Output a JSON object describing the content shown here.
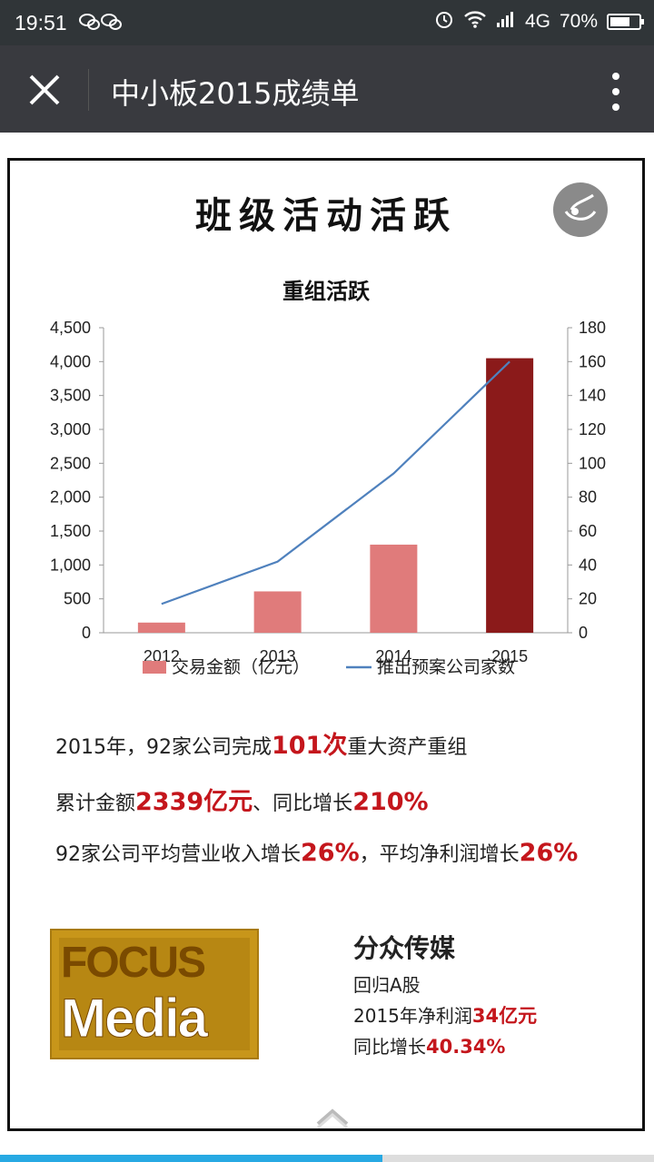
{
  "status_bar": {
    "time": "19:51",
    "network": "4G",
    "battery": "70%",
    "battery_level": 0.7
  },
  "header": {
    "title": "中小板2015成绩单",
    "close_icon": "close-icon",
    "more_icon": "more-vertical-icon"
  },
  "poster": {
    "title": "班级活动活跃",
    "chart_title": "重组活跃"
  },
  "chart_data": {
    "type": "bar",
    "title": "重组活跃",
    "categories": [
      "2012",
      "2013",
      "2014",
      "2015"
    ],
    "series": [
      {
        "name": "交易金额（亿元）",
        "type": "bar",
        "axis": "left",
        "values": [
          150,
          610,
          1300,
          4050
        ],
        "colors": [
          "#e07b7b",
          "#e07b7b",
          "#e07b7b",
          "#8b1a1a"
        ]
      },
      {
        "name": "推出预案公司家数",
        "type": "line",
        "axis": "right",
        "values": [
          17,
          42,
          94,
          160
        ],
        "color": "#4f81bd"
      }
    ],
    "y_left": {
      "min": 0,
      "max": 4500,
      "ticks": [
        "0",
        "500",
        "1,000",
        "1,500",
        "2,000",
        "2,500",
        "3,000",
        "3,500",
        "4,000",
        "4,500"
      ]
    },
    "y_right": {
      "min": 0,
      "max": 180,
      "ticks": [
        "0",
        "20",
        "40",
        "60",
        "80",
        "100",
        "120",
        "140",
        "160",
        "180"
      ]
    },
    "legend_position": "bottom"
  },
  "stats": [
    {
      "pre": "2015年，92家公司完成",
      "hl": "101次",
      "post": "重大资产重组",
      "hl2": "",
      "post2": ""
    },
    {
      "pre": "累计金额",
      "hl": "2339亿元",
      "post": "、同比增长",
      "hl2": "210%",
      "post2": ""
    },
    {
      "pre": "92家公司平均营业收入增长",
      "hl": "26%",
      "post": "，平均净利润增长",
      "hl2": "26%",
      "post2": ""
    }
  ],
  "focus_media": {
    "logo_word1": "FOCUS",
    "logo_word2": "Media",
    "name": "分众传媒",
    "line1": "回归A股",
    "line2_pre": "2015年净利润",
    "line2_hl": "34亿元",
    "line3_pre": "同比增长",
    "line3_hl": "40.34%"
  },
  "reading_progress": 0.585
}
